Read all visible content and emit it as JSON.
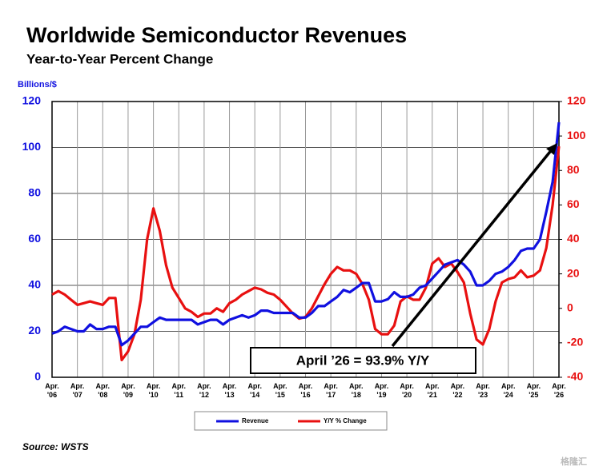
{
  "chart_data": {
    "type": "line",
    "title": "Worldwide Semiconductor Revenues",
    "subtitle": "Year-to-Year Percent Change",
    "y_axis_label": "Billions/$",
    "source": "Source: WSTS",
    "annotation": "April ’26 = 93.9% Y/Y",
    "watermark": "格隆汇",
    "x": [
      2006.25,
      2006.5,
      2006.75,
      2007,
      2007.25,
      2007.5,
      2007.75,
      2008,
      2008.25,
      2008.5,
      2008.75,
      2009,
      2009.25,
      2009.5,
      2009.75,
      2010,
      2010.25,
      2010.5,
      2010.75,
      2011,
      2011.25,
      2011.5,
      2011.75,
      2012,
      2012.25,
      2012.5,
      2012.75,
      2013,
      2013.25,
      2013.5,
      2013.75,
      2014,
      2014.25,
      2014.5,
      2014.75,
      2015,
      2015.25,
      2015.5,
      2015.75,
      2016,
      2016.25,
      2016.5,
      2016.75,
      2017,
      2017.25,
      2017.5,
      2017.75,
      2018,
      2018.25,
      2018.5,
      2018.75,
      2019,
      2019.25,
      2019.5,
      2019.75,
      2020,
      2020.25,
      2020.5,
      2020.75,
      2021,
      2021.25,
      2021.5,
      2021.75,
      2022,
      2022.25,
      2022.5,
      2022.75,
      2023,
      2023.25,
      2023.5,
      2023.75,
      2024,
      2024.25,
      2024.5,
      2024.75,
      2025,
      2025.25,
      2025.5,
      2025.75,
      2026,
      2026.25
    ],
    "series": [
      {
        "name": "Revenue",
        "color": "#1010e0",
        "axis": "y",
        "values": [
          19,
          20,
          22,
          21,
          20,
          20,
          23,
          21,
          21,
          22,
          22,
          14,
          16,
          19,
          22,
          22,
          24,
          26,
          25,
          25,
          25,
          25,
          25,
          23,
          24,
          25,
          25,
          23,
          25,
          26,
          27,
          26,
          27,
          29,
          29,
          28,
          28,
          28,
          28,
          26,
          26,
          28,
          31,
          31,
          33,
          35,
          38,
          37,
          39,
          41,
          41,
          33,
          33,
          34,
          37,
          35,
          35,
          36,
          39,
          40,
          43,
          46,
          49,
          50,
          51,
          49,
          46,
          40,
          40,
          42,
          45,
          46,
          48,
          51,
          55,
          56,
          56,
          60,
          72,
          85,
          111
        ]
      },
      {
        "name": "Y/Y % Change",
        "color": "#e81010",
        "axis": "y2",
        "values": [
          8,
          10,
          8,
          5,
          2,
          3,
          4,
          3,
          2,
          6,
          6,
          -30,
          -25,
          -15,
          5,
          40,
          58,
          45,
          25,
          12,
          6,
          0,
          -2,
          -5,
          -3,
          -3,
          0,
          -2,
          3,
          5,
          8,
          10,
          12,
          11,
          9,
          8,
          5,
          1,
          -3,
          -6,
          -5,
          0,
          7,
          14,
          20,
          24,
          22,
          22,
          20,
          14,
          5,
          -12,
          -15,
          -15,
          -10,
          4,
          7,
          5,
          5,
          12,
          26,
          29,
          24,
          26,
          21,
          15,
          -3,
          -18,
          -21,
          -12,
          4,
          15,
          17,
          18,
          22,
          18,
          19,
          22,
          35,
          60,
          94
        ]
      }
    ],
    "xlim": [
      2006.25,
      2026.25
    ],
    "xticks": [
      {
        "value": 2006.25,
        "label": "Apr. '06"
      },
      {
        "value": 2007.25,
        "label": "Apr. '07"
      },
      {
        "value": 2008.25,
        "label": "Apr. '08"
      },
      {
        "value": 2009.25,
        "label": "Apr. '09"
      },
      {
        "value": 2010.25,
        "label": "Apr. '10"
      },
      {
        "value": 2011.25,
        "label": "Apr. '11"
      },
      {
        "value": 2012.25,
        "label": "Apr. '12"
      },
      {
        "value": 2013.25,
        "label": "Apr. '13"
      },
      {
        "value": 2014.25,
        "label": "Apr. '14"
      },
      {
        "value": 2015.25,
        "label": "Apr. '15"
      },
      {
        "value": 2016.25,
        "label": "Apr. '16"
      },
      {
        "value": 2017.25,
        "label": "Apr. '17"
      },
      {
        "value": 2018.25,
        "label": "Apr. '18"
      },
      {
        "value": 2019.25,
        "label": "Apr. '19"
      },
      {
        "value": 2020.25,
        "label": "Apr. '20"
      },
      {
        "value": 2021.25,
        "label": "Apr. '21"
      },
      {
        "value": 2022.25,
        "label": "Apr. '22"
      },
      {
        "value": 2023.25,
        "label": "Apr. '23"
      },
      {
        "value": 2024.25,
        "label": "Apr. '24"
      },
      {
        "value": 2025.25,
        "label": "Apr. '25"
      },
      {
        "value": 2026.25,
        "label": "Apr. '26"
      }
    ],
    "ylim": [
      0,
      120
    ],
    "yticks": [
      0,
      20,
      40,
      60,
      80,
      100,
      120
    ],
    "y2lim": [
      -40,
      120
    ],
    "y2ticks": [
      -40,
      -20,
      0,
      20,
      40,
      60,
      80,
      100,
      120
    ],
    "grid": true
  }
}
